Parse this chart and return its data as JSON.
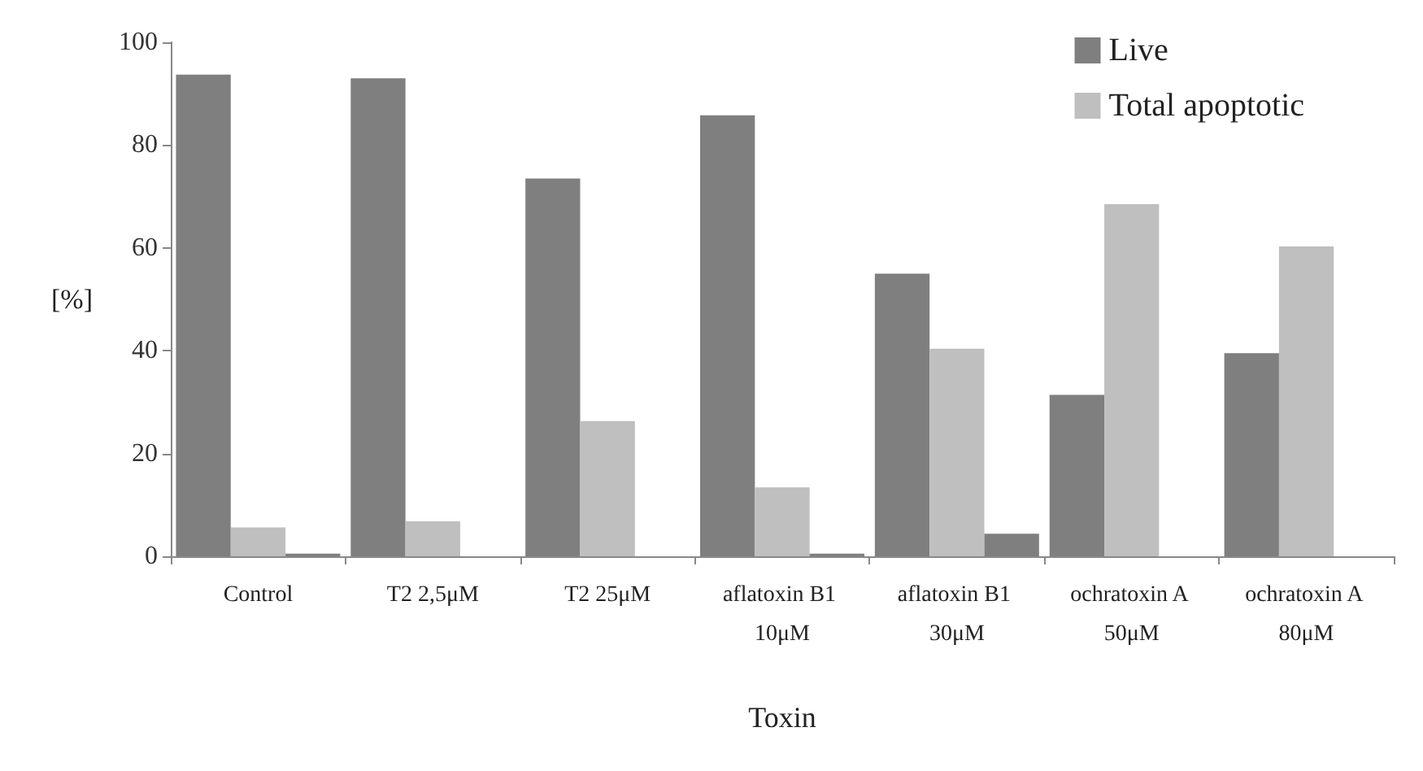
{
  "chart_data": {
    "type": "bar",
    "xlabel": "Toxin",
    "ylabel": "[%]",
    "categories": [
      "Control",
      "T2 2,5μM",
      "T2 25μM",
      "aflatoxin B1 10μM",
      "aflatoxin B1 30μM",
      "ochratoxin A 50μM",
      "ochratoxin A 80μM"
    ],
    "series": [
      {
        "name": "Live",
        "color": "#7f7f7f",
        "values": [
          93.7,
          93,
          73.5,
          85.8,
          55,
          31.4,
          39.5
        ]
      },
      {
        "name": "Total apoptotic",
        "color": "#bfbfbf",
        "values": [
          5.6,
          6.8,
          26.3,
          13.4,
          40.4,
          68.5,
          60.3
        ]
      },
      {
        "color": "#7f7f7f",
        "values": [
          0.5,
          0,
          0,
          0.5,
          4.4,
          0,
          0
        ]
      }
    ],
    "ylim": [
      0,
      100
    ],
    "yticks": [
      0,
      20,
      40,
      60,
      80,
      100
    ],
    "grid": false,
    "legend": "top right"
  }
}
